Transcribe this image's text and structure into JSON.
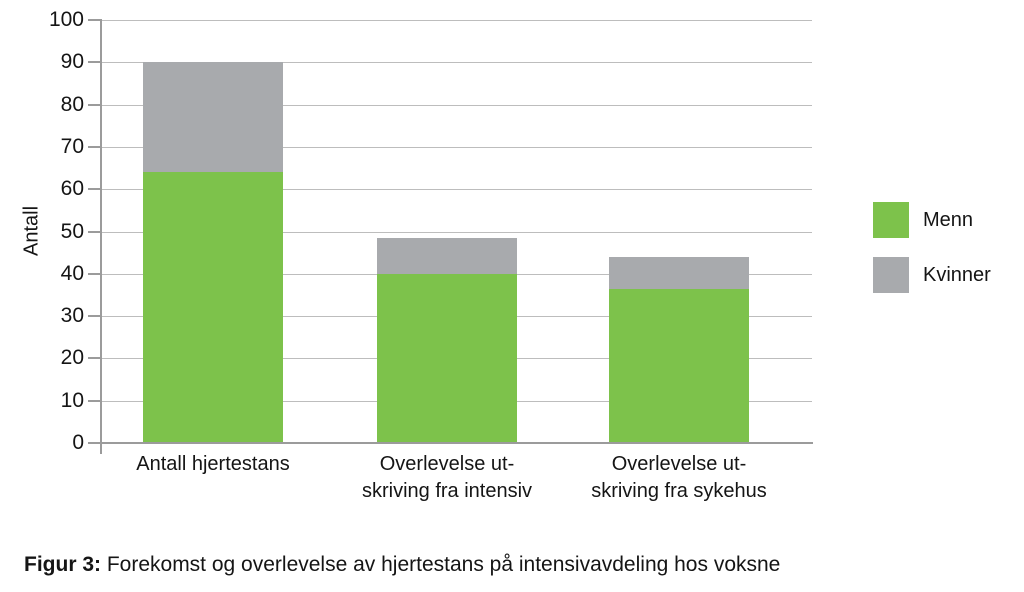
{
  "chart_data": {
    "type": "bar",
    "stacked": true,
    "title": "",
    "xlabel": "",
    "ylabel": "Antall",
    "ylim": [
      0,
      100
    ],
    "ytick_step": 10,
    "grid": true,
    "legend_position": "right",
    "categories": [
      "Antall hjertestans",
      "Overlevelse ut-\nskriving fra intensiv",
      "Overlevelse ut-\nskriving fra sykehus"
    ],
    "series": [
      {
        "name": "Menn",
        "color": "#7dc24b",
        "values": [
          64,
          40,
          36.5
        ]
      },
      {
        "name": "Kvinner",
        "color": "#a8aaad",
        "values": [
          26,
          8.5,
          7.5
        ]
      }
    ],
    "totals": [
      90,
      48.5,
      44
    ]
  },
  "legend": {
    "menn_label": "Menn",
    "kvinner_label": "Kvinner"
  },
  "caption": {
    "label": "Figur 3:",
    "text": " Forekomst og overlevelse av hjertestans på intensivavdeling hos voksne"
  },
  "colors": {
    "menn": "#7dc24b",
    "kvinner": "#a8aaad",
    "gridline": "#bdbdbd",
    "axis": "#9b9b9b",
    "text": "#151515"
  }
}
